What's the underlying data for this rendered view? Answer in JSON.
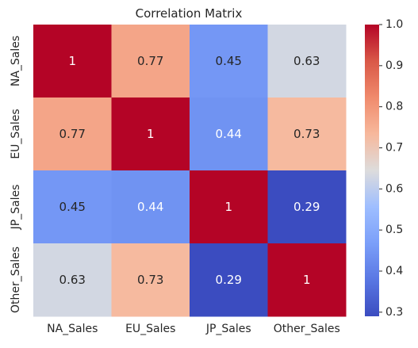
{
  "chart_data": {
    "type": "heatmap",
    "title": "Correlation Matrix",
    "x_labels": [
      "NA_Sales",
      "EU_Sales",
      "JP_Sales",
      "Other_Sales"
    ],
    "y_labels": [
      "NA_Sales",
      "EU_Sales",
      "JP_Sales",
      "Other_Sales"
    ],
    "values": [
      [
        1,
        0.77,
        0.45,
        0.63
      ],
      [
        0.77,
        1,
        0.44,
        0.73
      ],
      [
        0.45,
        0.44,
        1,
        0.29
      ],
      [
        0.63,
        0.73,
        0.29,
        1
      ]
    ],
    "annotations": [
      [
        "1",
        "0.77",
        "0.45",
        "0.63"
      ],
      [
        "0.77",
        "1",
        "0.44",
        "0.73"
      ],
      [
        "0.45",
        "0.44",
        "1",
        "0.29"
      ],
      [
        "0.63",
        "0.73",
        "0.29",
        "1"
      ]
    ],
    "colormap": "coolwarm",
    "colorbar": {
      "vmin": 0.29,
      "vmax": 1.0,
      "ticks": [
        0.3,
        0.4,
        0.5,
        0.6,
        0.7,
        0.8,
        0.9,
        1.0
      ],
      "tick_labels": [
        "0.3",
        "0.4",
        "0.5",
        "0.6",
        "0.7",
        "0.8",
        "0.9",
        "1.0"
      ]
    }
  }
}
